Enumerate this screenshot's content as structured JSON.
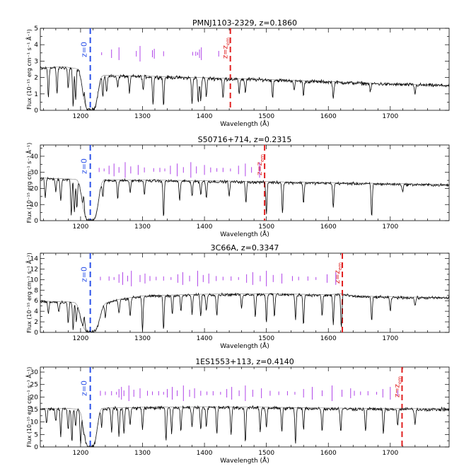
{
  "chart_data": [
    {
      "type": "line",
      "title": "PMNJ1103-2329, z=0.1860",
      "xlabel": "Wavelength (Å)",
      "ylabel": "Flux (10⁻¹⁵ erg cm⁻¹ s⁻¹ Å⁻¹)",
      "xlim": [
        1135,
        1795
      ],
      "ylim": [
        0,
        5
      ],
      "xticks": [
        1200,
        1300,
        1400,
        1500,
        1600,
        1700
      ],
      "yticks": [
        0,
        1,
        2,
        3,
        4,
        5
      ],
      "continuum": [
        [
          1135,
          2.55
        ],
        [
          1175,
          2.6
        ],
        [
          1200,
          2.45
        ],
        [
          1215,
          2.1
        ],
        [
          1300,
          2.05
        ],
        [
          1400,
          1.95
        ],
        [
          1500,
          1.85
        ],
        [
          1600,
          1.72
        ],
        [
          1700,
          1.58
        ],
        [
          1795,
          1.5
        ]
      ],
      "absorption": [
        [
          1148,
          0.8
        ],
        [
          1162,
          1.0
        ],
        [
          1180,
          1.3
        ],
        [
          1188,
          0.2
        ],
        [
          1192,
          0.6
        ],
        [
          1206,
          1.0
        ],
        [
          1236,
          0.8
        ],
        [
          1242,
          1.0
        ],
        [
          1260,
          1.4
        ],
        [
          1279,
          1.0
        ],
        [
          1301,
          1.2
        ],
        [
          1317,
          0.4
        ],
        [
          1334,
          0.3
        ],
        [
          1380,
          0.4
        ],
        [
          1390,
          0.5
        ],
        [
          1394,
          0.6
        ],
        [
          1403,
          0.8
        ],
        [
          1430,
          0.7
        ],
        [
          1456,
          1.0
        ],
        [
          1466,
          1.1
        ],
        [
          1510,
          0.8
        ],
        [
          1545,
          1.2
        ],
        [
          1560,
          0.9
        ],
        [
          1608,
          0.7
        ],
        [
          1668,
          1.1
        ],
        [
          1740,
          1.0
        ]
      ],
      "trough_center": 1215.67,
      "trough_halfwidth": 12,
      "noise": 0.09,
      "markers": [
        1234,
        1250,
        1262,
        1290,
        1296,
        1316,
        1319,
        1334,
        1381,
        1386,
        1389,
        1392,
        1395,
        1423
      ],
      "marker_level": 3.45,
      "lya_z0": 1215.67,
      "lya_zem": 1441.8,
      "label_z0": "z=0",
      "label_zem": "z=z",
      "label_zem_sub": "em"
    },
    {
      "type": "line",
      "title": "S50716+714, z=0.2315",
      "xlabel": "Wavelength (Å)",
      "ylabel": "Flux (10⁻¹⁵ erg cm⁻¹ s⁻¹ Å⁻¹)",
      "xlim": [
        1135,
        1795
      ],
      "ylim": [
        0,
        47
      ],
      "xticks": [
        1200,
        1300,
        1400,
        1500,
        1600,
        1700
      ],
      "yticks": [
        0,
        10,
        20,
        30,
        40
      ],
      "continuum": [
        [
          1135,
          26
        ],
        [
          1175,
          25.5
        ],
        [
          1200,
          25
        ],
        [
          1230,
          25
        ],
        [
          1300,
          24.8
        ],
        [
          1400,
          24.3
        ],
        [
          1500,
          23.8
        ],
        [
          1600,
          23.2
        ],
        [
          1700,
          22.6
        ],
        [
          1795,
          22
        ]
      ],
      "absorption": [
        [
          1143,
          14
        ],
        [
          1160,
          18
        ],
        [
          1168,
          12
        ],
        [
          1185,
          3
        ],
        [
          1190,
          5
        ],
        [
          1194,
          8
        ],
        [
          1205,
          15
        ],
        [
          1236,
          14
        ],
        [
          1260,
          13
        ],
        [
          1280,
          17
        ],
        [
          1303,
          16
        ],
        [
          1334,
          2
        ],
        [
          1360,
          12
        ],
        [
          1380,
          15
        ],
        [
          1394,
          16
        ],
        [
          1403,
          14
        ],
        [
          1440,
          15
        ],
        [
          1467,
          11
        ],
        [
          1500,
          4
        ],
        [
          1526,
          5
        ],
        [
          1560,
          11
        ],
        [
          1608,
          8
        ],
        [
          1670,
          2
        ],
        [
          1720,
          18
        ]
      ],
      "trough_center": 1215.67,
      "trough_halfwidth": 13,
      "noise": 0.7,
      "markers": [
        1230,
        1238,
        1246,
        1254,
        1262,
        1272,
        1281,
        1293,
        1303,
        1318,
        1328,
        1336,
        1345,
        1356,
        1366,
        1378,
        1387,
        1400,
        1410,
        1420,
        1430,
        1442,
        1455,
        1466,
        1476,
        1489
      ],
      "marker_level": 31.5,
      "lya_z0": 1215.67,
      "lya_zem": 1497.1,
      "label_z0": "z=0",
      "label_zem": "z=z",
      "label_zem_sub": "em"
    },
    {
      "type": "line",
      "title": "3C66A, z=0.3347",
      "xlabel": "Wavelength (Å)",
      "ylabel": "Flux (10⁻¹⁵ erg cm⁻¹ s⁻¹ Å⁻¹)",
      "xlim": [
        1135,
        1795
      ],
      "ylim": [
        0,
        15
      ],
      "xticks": [
        1200,
        1300,
        1400,
        1500,
        1600,
        1700
      ],
      "yticks": [
        0,
        2,
        4,
        6,
        8,
        10,
        12,
        14
      ],
      "continuum": [
        [
          1135,
          5.8
        ],
        [
          1175,
          5.7
        ],
        [
          1200,
          5.5
        ],
        [
          1235,
          5.3
        ],
        [
          1260,
          6.1
        ],
        [
          1300,
          6.8
        ],
        [
          1400,
          7.1
        ],
        [
          1500,
          7.2
        ],
        [
          1600,
          7.0
        ],
        [
          1620,
          7.2
        ],
        [
          1640,
          6.8
        ],
        [
          1700,
          6.6
        ],
        [
          1795,
          6.5
        ]
      ],
      "absorption": [
        [
          1148,
          3.5
        ],
        [
          1165,
          3.8
        ],
        [
          1180,
          1.5
        ],
        [
          1188,
          0.3
        ],
        [
          1193,
          2.0
        ],
        [
          1206,
          3.0
        ],
        [
          1240,
          2.5
        ],
        [
          1262,
          3.5
        ],
        [
          1280,
          3.0
        ],
        [
          1300,
          0.2
        ],
        [
          1334,
          0.5
        ],
        [
          1348,
          3.5
        ],
        [
          1362,
          4.0
        ],
        [
          1380,
          3.5
        ],
        [
          1394,
          3.0
        ],
        [
          1403,
          4.0
        ],
        [
          1420,
          3.2
        ],
        [
          1460,
          4.5
        ],
        [
          1482,
          3.0
        ],
        [
          1500,
          2.0
        ],
        [
          1513,
          3.0
        ],
        [
          1547,
          2.5
        ],
        [
          1560,
          1.5
        ],
        [
          1590,
          3.0
        ],
        [
          1608,
          1.5
        ],
        [
          1621,
          0.8
        ],
        [
          1670,
          2.0
        ],
        [
          1700,
          4.0
        ],
        [
          1740,
          5.0
        ]
      ],
      "trough_center": 1215.67,
      "trough_halfwidth": 15,
      "noise": 0.22,
      "markers": [
        1232,
        1246,
        1254,
        1262,
        1268,
        1276,
        1282,
        1296,
        1304,
        1312,
        1322,
        1334,
        1346,
        1357,
        1365,
        1376,
        1389,
        1398,
        1407,
        1419,
        1430,
        1443,
        1455,
        1468,
        1478,
        1490,
        1500,
        1511,
        1525,
        1542,
        1552,
        1567,
        1580,
        1598,
        1612
      ],
      "marker_level": 10.2,
      "lya_z0": 1215.67,
      "lya_zem": 1622.6,
      "label_z0": "z=0",
      "label_zem": "z=z",
      "label_zem_sub": "em"
    },
    {
      "type": "line",
      "title": "1ES1553+113, z=0.4140",
      "xlabel": "Wavelength (Å)",
      "ylabel": "Flux (10⁻¹⁵ erg cm⁻¹ s⁻¹ Å⁻¹)",
      "xlim": [
        1135,
        1795
      ],
      "ylim": [
        0,
        32
      ],
      "xticks": [
        1200,
        1300,
        1400,
        1500,
        1600,
        1700
      ],
      "yticks": [
        0,
        5,
        10,
        15,
        20,
        25,
        30
      ],
      "continuum": [
        [
          1135,
          15.2
        ],
        [
          1175,
          15.2
        ],
        [
          1200,
          14.8
        ],
        [
          1230,
          15.2
        ],
        [
          1300,
          15.6
        ],
        [
          1400,
          15.8
        ],
        [
          1500,
          15.6
        ],
        [
          1600,
          15.3
        ],
        [
          1700,
          15.1
        ],
        [
          1795,
          15.0
        ]
      ],
      "absorption": [
        [
          1145,
          9
        ],
        [
          1160,
          10
        ],
        [
          1168,
          4
        ],
        [
          1180,
          7
        ],
        [
          1186,
          2
        ],
        [
          1192,
          8
        ],
        [
          1200,
          1
        ],
        [
          1206,
          5
        ],
        [
          1234,
          8
        ],
        [
          1250,
          6
        ],
        [
          1262,
          4
        ],
        [
          1270,
          5
        ],
        [
          1280,
          9
        ],
        [
          1300,
          7
        ],
        [
          1338,
          2
        ],
        [
          1347,
          5
        ],
        [
          1362,
          6
        ],
        [
          1380,
          8
        ],
        [
          1394,
          7
        ],
        [
          1403,
          8
        ],
        [
          1420,
          5
        ],
        [
          1443,
          5
        ],
        [
          1466,
          2
        ],
        [
          1490,
          6
        ],
        [
          1500,
          8
        ],
        [
          1525,
          6
        ],
        [
          1547,
          1
        ],
        [
          1560,
          7
        ],
        [
          1590,
          6
        ],
        [
          1620,
          6
        ],
        [
          1660,
          6
        ],
        [
          1689,
          5
        ],
        [
          1712,
          8
        ],
        [
          1740,
          9
        ]
      ],
      "trough_center": 1215.67,
      "trough_halfwidth": 11,
      "noise": 0.55,
      "markers": [
        1232,
        1240,
        1250,
        1258,
        1262,
        1266,
        1270,
        1278,
        1286,
        1296,
        1308,
        1316,
        1326,
        1334,
        1340,
        1348,
        1356,
        1366,
        1376,
        1384,
        1394,
        1404,
        1414,
        1426,
        1436,
        1444,
        1456,
        1466,
        1478,
        1492,
        1506,
        1520,
        1534,
        1546,
        1560,
        1574,
        1590,
        1606,
        1622,
        1636,
        1642,
        1652,
        1664,
        1678,
        1688,
        1700,
        1712
      ],
      "marker_level": 21.5,
      "lya_z0": 1215.67,
      "lya_zem": 1719.0,
      "label_z0": "z=0",
      "label_zem": "z=z",
      "label_zem_sub": "em"
    }
  ],
  "colors": {
    "spectrum": "#000000",
    "continuum": "#444444",
    "z0_line": "#2a50e8",
    "zem_line": "#e02020",
    "markers": "#b044e8",
    "axis": "#000000"
  }
}
